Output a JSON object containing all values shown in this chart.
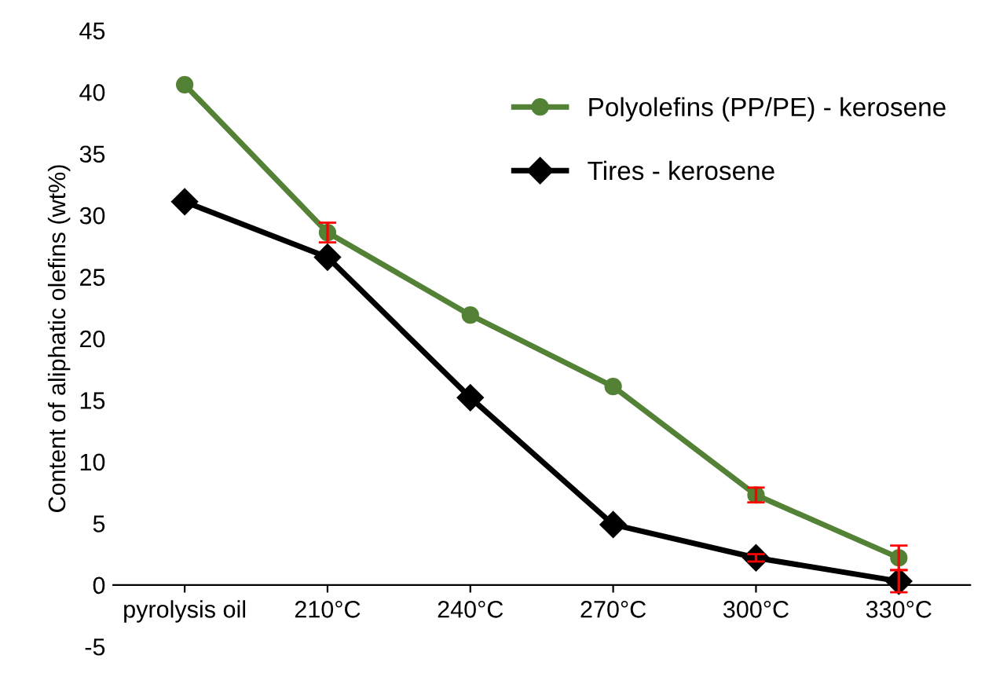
{
  "chart_data": {
    "type": "line",
    "ylabel": "Content of aliphatic olefins (wt%)",
    "categories": [
      "pyrolysis oil",
      "210°C",
      "240°C",
      "270°C",
      "300°C",
      "330°C"
    ],
    "series": [
      {
        "name": "Polyolefins (PP/PE) - kerosene",
        "color": "#538135",
        "marker": "circle",
        "values": [
          40.6,
          28.6,
          21.9,
          16.1,
          7.3,
          2.2
        ],
        "errors": [
          null,
          0.8,
          null,
          null,
          0.6,
          1.0
        ]
      },
      {
        "name": "Tires - kerosene",
        "color": "#000000",
        "marker": "diamond",
        "values": [
          31.1,
          26.6,
          15.2,
          4.9,
          2.2,
          0.3
        ],
        "errors": [
          null,
          null,
          null,
          null,
          0.3,
          0.9
        ]
      }
    ],
    "ylim": [
      -5,
      45
    ],
    "yticks": [
      -5,
      0,
      5,
      10,
      15,
      20,
      25,
      30,
      35,
      40,
      45
    ],
    "grid": false,
    "legend": "top right",
    "line_style": "solid"
  }
}
